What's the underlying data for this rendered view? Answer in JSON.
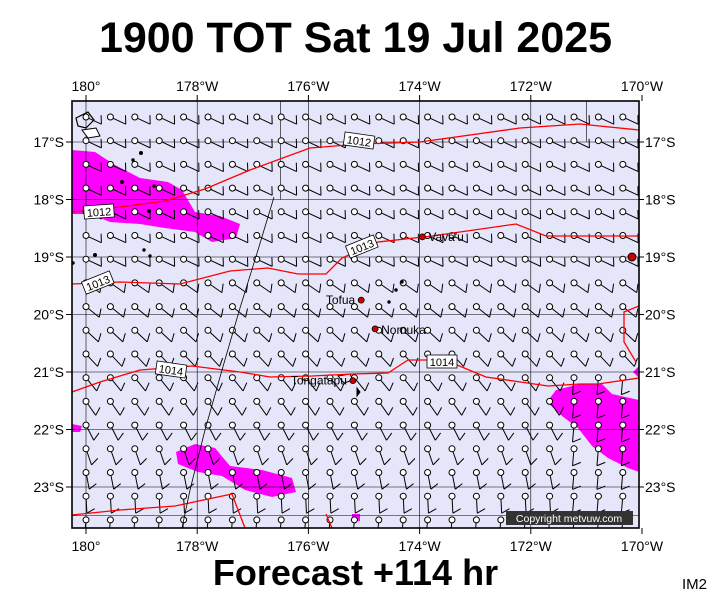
{
  "header": {
    "title": "1900 TOT Sat 19 Jul 2025"
  },
  "footer": {
    "forecast": "Forecast +114 hr",
    "tag": "IM2"
  },
  "map": {
    "lon_labels": [
      "180°",
      "178°W",
      "176°W",
      "174°W",
      "172°W",
      "170°W"
    ],
    "lon_values": [
      180,
      178,
      176,
      174,
      172,
      170
    ],
    "lat_labels": [
      "17°S",
      "18°S",
      "19°S",
      "20°S",
      "21°S",
      "22°S",
      "23°S"
    ],
    "lat_values": [
      17,
      18,
      19,
      20,
      21,
      22,
      23
    ],
    "places": [
      {
        "name": "Vava'u",
        "lon": 173.95,
        "lat": 18.65
      },
      {
        "name": "Tofua",
        "lon": 175.05,
        "lat": 19.75
      },
      {
        "name": "Nomuka",
        "lon": 174.8,
        "lat": 20.25
      },
      {
        "name": "Tongatapu",
        "lon": 175.2,
        "lat": 21.15
      }
    ],
    "isobars": [
      {
        "label": "1012"
      },
      {
        "label": "1012"
      },
      {
        "label": "1013"
      },
      {
        "label": "1013"
      },
      {
        "label": "1014"
      },
      {
        "label": "1014"
      }
    ],
    "copyright": "Copyright metvuw.com",
    "colors": {
      "ocean": "#e6e6fa",
      "rain": "#ff00ff",
      "isobar": "#ff0000",
      "land": "#000000"
    }
  }
}
